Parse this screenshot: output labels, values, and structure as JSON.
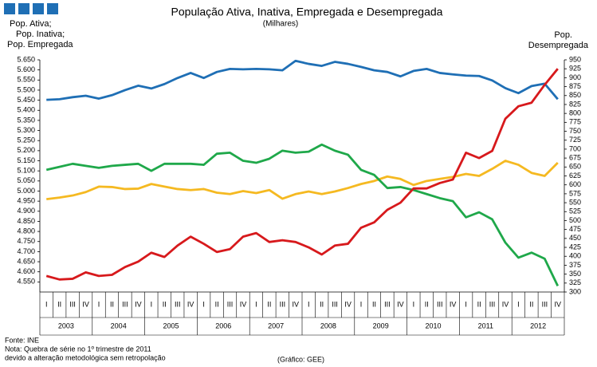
{
  "chart_data": {
    "type": "line",
    "title": "População Ativa, Inativa, Empregada e Desempregada",
    "subtitle": "(Milhares)",
    "y2_label": [
      "Pop.",
      "Desempregada"
    ],
    "categories": [
      "I",
      "II",
      "III",
      "IV",
      "I",
      "II",
      "III",
      "IV",
      "I",
      "II",
      "III",
      "IV",
      "I",
      "II",
      "III",
      "IV",
      "I",
      "II",
      "III",
      "IV",
      "I",
      "II",
      "III",
      "IV",
      "I",
      "II",
      "III",
      "IV",
      "I",
      "II",
      "III",
      "IV",
      "I",
      "II",
      "III",
      "IV",
      "I",
      "II",
      "III",
      "IV"
    ],
    "years": [
      "2003",
      "2004",
      "2005",
      "2006",
      "2007",
      "2008",
      "2009",
      "2010",
      "2011",
      "2012"
    ],
    "series": [
      {
        "name": "Pop. Ativa;",
        "color": "#1f6fb5",
        "axis": "y",
        "values": [
          5452,
          5455,
          5465,
          5472,
          5458,
          5475,
          5500,
          5522,
          5508,
          5530,
          5560,
          5585,
          5560,
          5590,
          5605,
          5603,
          5605,
          5603,
          5598,
          5645,
          5630,
          5620,
          5640,
          5630,
          5615,
          5598,
          5590,
          5568,
          5595,
          5605,
          5585,
          5578,
          5572,
          5570,
          5548,
          5510,
          5485,
          5520,
          5532,
          5455
        ]
      },
      {
        "name": "Pop. Inativa;",
        "color": "#f5b921",
        "axis": "y",
        "values": [
          4960,
          4968,
          4978,
          4995,
          5022,
          5020,
          5010,
          5012,
          5035,
          5022,
          5010,
          5005,
          5010,
          4992,
          4985,
          5000,
          4990,
          5005,
          4962,
          4985,
          4998,
          4985,
          4998,
          5015,
          5035,
          5050,
          5072,
          5060,
          5030,
          5050,
          5060,
          5070,
          5085,
          5075,
          5110,
          5150,
          5130,
          5090,
          5075,
          5140
        ]
      },
      {
        "name": "Pop. Empregada",
        "color": "#1fa84a",
        "axis": "y",
        "values": [
          5105,
          5120,
          5135,
          5125,
          5115,
          5125,
          5130,
          5135,
          5100,
          5135,
          5135,
          5135,
          5130,
          5185,
          5190,
          5150,
          5140,
          5160,
          5200,
          5190,
          5195,
          5230,
          5200,
          5180,
          5105,
          5080,
          5015,
          5020,
          5005,
          4985,
          4965,
          4950,
          4870,
          4895,
          4860,
          4745,
          4670,
          4695,
          4665,
          4530
        ]
      },
      {
        "name": "Pop. Desempregada",
        "color": "#d7191c",
        "axis": "y2",
        "values": [
          345,
          335,
          337,
          355,
          345,
          348,
          370,
          385,
          410,
          398,
          430,
          455,
          435,
          412,
          420,
          455,
          465,
          440,
          445,
          440,
          425,
          405,
          430,
          435,
          480,
          495,
          530,
          550,
          590,
          590,
          605,
          615,
          690,
          675,
          695,
          785,
          820,
          830,
          880,
          925
        ]
      }
    ],
    "ylim": [
      4500,
      5650
    ],
    "yticks": [
      {
        "value": 4550,
        "label": "4.550"
      },
      {
        "value": 4600,
        "label": "4.600"
      },
      {
        "value": 4650,
        "label": "4.650"
      },
      {
        "value": 4700,
        "label": "4.700"
      },
      {
        "value": 4750,
        "label": "4.750"
      },
      {
        "value": 4800,
        "label": "4.800"
      },
      {
        "value": 4850,
        "label": "4.850"
      },
      {
        "value": 4900,
        "label": "4.900"
      },
      {
        "value": 4950,
        "label": "4.950"
      },
      {
        "value": 5000,
        "label": "5.000"
      },
      {
        "value": 5050,
        "label": "5.050"
      },
      {
        "value": 5100,
        "label": "5.100"
      },
      {
        "value": 5150,
        "label": "5.150"
      },
      {
        "value": 5200,
        "label": "5.200"
      },
      {
        "value": 5250,
        "label": "5.250"
      },
      {
        "value": 5300,
        "label": "5.300"
      },
      {
        "value": 5350,
        "label": "5.350"
      },
      {
        "value": 5400,
        "label": "5.400"
      },
      {
        "value": 5450,
        "label": "5.450"
      },
      {
        "value": 5500,
        "label": "5.500"
      },
      {
        "value": 5550,
        "label": "5.550"
      },
      {
        "value": 5600,
        "label": "5.600"
      },
      {
        "value": 5650,
        "label": "5.650"
      }
    ],
    "y2lim": [
      300,
      950
    ],
    "y2ticks": [
      300,
      325,
      350,
      375,
      400,
      425,
      450,
      475,
      500,
      525,
      550,
      575,
      600,
      625,
      650,
      675,
      700,
      725,
      750,
      775,
      800,
      825,
      850,
      875,
      900,
      925,
      950
    ],
    "grid": false,
    "footnotes": [
      "Fonte: INE",
      "Nota: Quebra de série no 1º trimestre de 2011",
      "devido a alteração metodológica sem retropolação"
    ],
    "credit": "(Gráfico: GEE)"
  }
}
